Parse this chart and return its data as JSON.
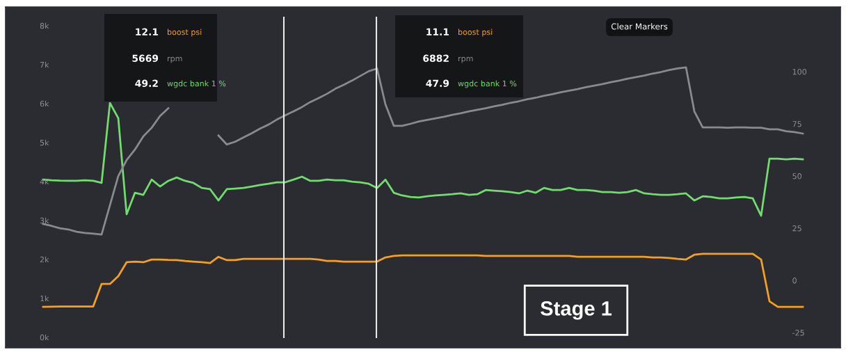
{
  "chart_data": {
    "type": "line",
    "categories": [
      null,
      null,
      null,
      null,
      null,
      null,
      null,
      null,
      null,
      null,
      null,
      null,
      null,
      null,
      null,
      null,
      null,
      null,
      null,
      null,
      null,
      null,
      null,
      null,
      null,
      null,
      null,
      null,
      null,
      null,
      null,
      null,
      null,
      null,
      null,
      null,
      null,
      null,
      null,
      null,
      null,
      null,
      null,
      null,
      null,
      null,
      null,
      null,
      null,
      null,
      null,
      null,
      null,
      null,
      null,
      null,
      null,
      null,
      null,
      null,
      null,
      null,
      null,
      null,
      null,
      null,
      null,
      null,
      null,
      null,
      null,
      null,
      null,
      null,
      null,
      null,
      null,
      null,
      null,
      null,
      null,
      null,
      null,
      null,
      null,
      null,
      null,
      null,
      null,
      null,
      null,
      null
    ],
    "series": [
      {
        "name": "boost psi",
        "color": "#f5a020",
        "axis": "y2",
        "values": [
          -12.7,
          -12.6,
          -12.5,
          -12.5,
          -12.5,
          -12.5,
          -12.5,
          -1.7,
          -1.7,
          2,
          8.7,
          9,
          8.7,
          10,
          10,
          9.8,
          9.7,
          9.3,
          9,
          8.7,
          8.3,
          11.3,
          9.7,
          9.7,
          10.3,
          10.3,
          10.3,
          10.3,
          10.3,
          10.3,
          10.3,
          10.3,
          10.3,
          10,
          9.3,
          9.3,
          9,
          9,
          9,
          9,
          9,
          11,
          11.7,
          12,
          12,
          12,
          12,
          12,
          12,
          12,
          12,
          12,
          12,
          11.7,
          11.7,
          11.7,
          11.7,
          11.7,
          11.7,
          11.7,
          11.7,
          11.7,
          11.7,
          11.7,
          11.3,
          11.3,
          11.3,
          11.3,
          11.3,
          11.3,
          11.3,
          11.3,
          11.3,
          11,
          11,
          10.7,
          10.3,
          10,
          12.3,
          12.7,
          12.7,
          12.7,
          12.7,
          12.7,
          12.7,
          12.7,
          10,
          -10,
          -12.7,
          -12.7,
          -12.7,
          -12.7
        ]
      },
      {
        "name": "rpm",
        "color": "#8a8a8e",
        "axis": "y",
        "values": [
          2910,
          2860,
          2800,
          2770,
          2710,
          2680,
          2660,
          2640,
          3390,
          4140,
          4550,
          4820,
          5160,
          5380,
          5680,
          5880,
          null,
          null,
          null,
          null,
          null,
          5180,
          4950,
          5020,
          5130,
          5240,
          5360,
          5460,
          5590,
          5700,
          5800,
          5910,
          6040,
          6140,
          6250,
          6380,
          6480,
          6590,
          6710,
          6830,
          6900,
          5980,
          5430,
          5430,
          5480,
          5540,
          5580,
          5620,
          5660,
          5710,
          5750,
          5800,
          5840,
          5880,
          5930,
          5970,
          6020,
          6060,
          6110,
          6150,
          6200,
          6240,
          6290,
          6330,
          6370,
          6420,
          6460,
          6500,
          6550,
          6590,
          6640,
          6680,
          6720,
          6770,
          6810,
          6860,
          6900,
          6930,
          5800,
          5390,
          5390,
          5390,
          5380,
          5390,
          5390,
          5380,
          5380,
          5340,
          5340,
          5290,
          5270,
          5230
        ]
      },
      {
        "name": "wgdc bank 1 %",
        "color": "#72dc6e",
        "axis": "y2",
        "values": [
          48.3,
          48,
          47.8,
          47.7,
          47.7,
          48,
          47.7,
          46.7,
          85,
          77.7,
          31.7,
          42,
          41,
          48.3,
          45,
          47.7,
          49.3,
          47.7,
          46.7,
          44.3,
          43.7,
          38.3,
          43.7,
          44,
          44.3,
          45,
          45.7,
          46.3,
          47,
          47,
          48.3,
          49.7,
          47.7,
          47.7,
          48.3,
          48,
          48,
          47.3,
          47,
          46.3,
          44.3,
          48.3,
          42,
          40.7,
          40,
          39.7,
          40.3,
          40.7,
          41,
          41.3,
          41.7,
          41,
          41.3,
          43.3,
          43,
          42.7,
          42.3,
          41.7,
          43,
          42,
          44.3,
          43.3,
          43.3,
          44.3,
          43.3,
          43.3,
          43,
          42.3,
          42.3,
          42,
          42.3,
          43.3,
          41.7,
          41.3,
          41,
          41,
          41.3,
          41.7,
          38.3,
          40.3,
          40,
          39.3,
          39.3,
          39.7,
          40,
          39.3,
          31,
          58.3,
          58.3,
          58,
          58.3,
          58
        ]
      }
    ],
    "ylim": [
      -270,
      8480
    ],
    "yticks": [
      {
        "value": 0,
        "label": "0k"
      },
      {
        "value": 1000,
        "label": "1k"
      },
      {
        "value": 2000,
        "label": "2k"
      },
      {
        "value": 3000,
        "label": "3k"
      },
      {
        "value": 4000,
        "label": "4k"
      },
      {
        "value": 5000,
        "label": "5k"
      },
      {
        "value": 6000,
        "label": "6k"
      },
      {
        "value": 7000,
        "label": "7k"
      },
      {
        "value": 8000,
        "label": "8k"
      }
    ],
    "y2lim": [
      -32.3,
      131
    ],
    "y2ticks": [
      -25,
      0,
      25,
      50,
      75,
      100
    ],
    "annotations": [
      "12.1",
      "5669",
      "49.2",
      "11.1",
      "6882",
      "47.9",
      "Clear Markers",
      "Stage 1"
    ],
    "grid": false,
    "legend": false
  }
}
